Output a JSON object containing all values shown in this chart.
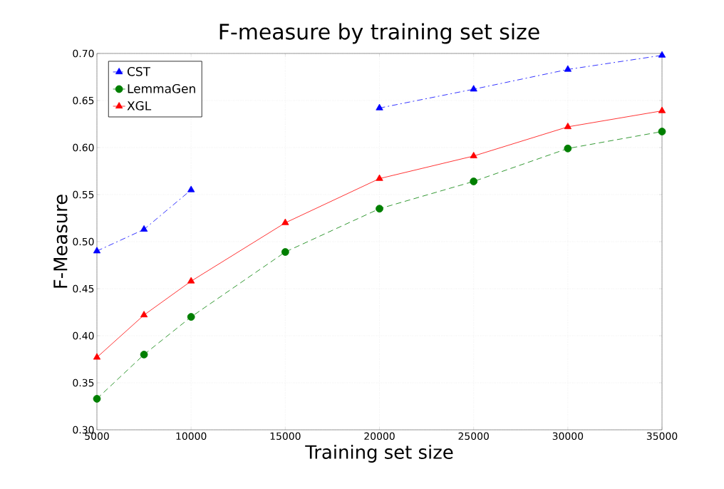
{
  "chart_data": {
    "type": "line",
    "title": "F-measure by training set size",
    "xlabel": "Training set size",
    "ylabel": "F-Measure",
    "x": [
      5000,
      7500,
      10000,
      15000,
      20000,
      25000,
      30000,
      35000
    ],
    "series": [
      {
        "name": "CST",
        "color": "#0000ff",
        "marker": "triangle",
        "line_style": "dashdot",
        "values": [
          0.49,
          0.513,
          0.555,
          null,
          0.642,
          0.662,
          0.683,
          0.698
        ]
      },
      {
        "name": "LemmaGen",
        "color": "#007f00",
        "marker": "circle",
        "line_style": "dashed",
        "values": [
          0.333,
          0.38,
          0.42,
          0.489,
          0.535,
          0.564,
          0.599,
          0.617
        ]
      },
      {
        "name": "XGL",
        "color": "#ff0000",
        "marker": "triangle",
        "line_style": "solid",
        "values": [
          0.377,
          0.422,
          0.458,
          0.52,
          0.567,
          0.591,
          0.622,
          0.639
        ]
      }
    ],
    "xlim": [
      5000,
      35000
    ],
    "xticks": [
      5000,
      10000,
      15000,
      20000,
      25000,
      30000,
      35000
    ],
    "ylim": [
      0.3,
      0.7
    ],
    "yticks": [
      {
        "value": 0.3,
        "label": "0.30"
      },
      {
        "value": 0.35,
        "label": "0.35"
      },
      {
        "value": 0.4,
        "label": "0.40"
      },
      {
        "value": 0.45,
        "label": "0.45"
      },
      {
        "value": 0.5,
        "label": "0.50"
      },
      {
        "value": 0.55,
        "label": "0.55"
      },
      {
        "value": 0.6,
        "label": "0.60"
      },
      {
        "value": 0.65,
        "label": "0.65"
      },
      {
        "value": 0.7,
        "label": "0.70"
      }
    ],
    "grid": true,
    "legend": "top left"
  }
}
